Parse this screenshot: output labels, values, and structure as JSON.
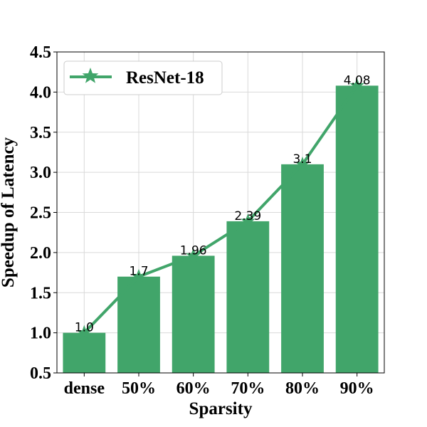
{
  "chart_data": {
    "type": "bar",
    "categories": [
      "dense",
      "50%",
      "60%",
      "70%",
      "80%",
      "90%"
    ],
    "values": [
      1.0,
      1.7,
      1.96,
      2.39,
      3.1,
      4.08
    ],
    "data_labels": [
      "1.0",
      "1.7",
      "1.96",
      "2.39",
      "3.1",
      "4.08"
    ],
    "line_series": {
      "name": "ResNet-18",
      "values": [
        1.0,
        1.7,
        1.96,
        2.39,
        3.1,
        4.08
      ],
      "marker": "star"
    },
    "xlabel": "Sparsity",
    "ylabel": "Speedup of Latency",
    "ylim": [
      0.5,
      4.5
    ],
    "yticks": [
      "0.5",
      "1.0",
      "1.5",
      "2.0",
      "2.5",
      "3.0",
      "3.5",
      "4.0",
      "4.5"
    ],
    "grid": true,
    "legend_position": "top-left",
    "colors": {
      "bar": "#41a56a",
      "line": "#41a56a",
      "grid": "#d9d9d9"
    }
  }
}
